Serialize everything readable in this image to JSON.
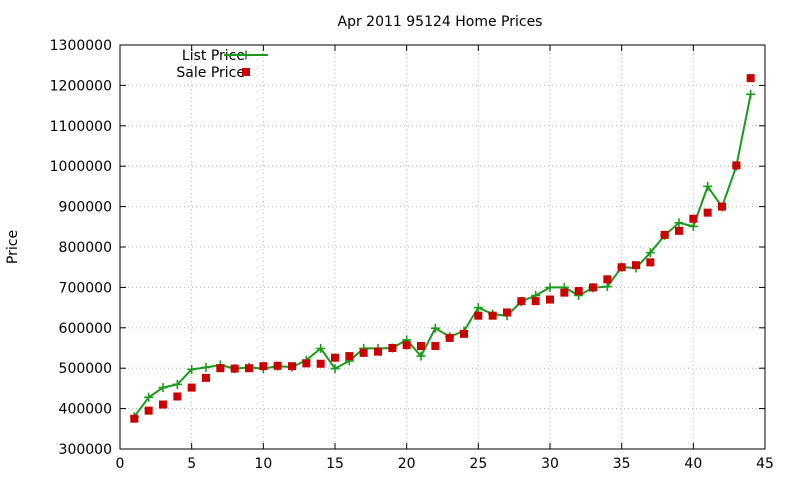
{
  "chart_data": {
    "type": "line",
    "title": "Apr 2011 95124 Home Prices",
    "xlabel": "",
    "ylabel": "Price",
    "xlim": [
      0,
      45
    ],
    "ylim": [
      300000,
      1300000
    ],
    "x_ticks": [
      0,
      5,
      10,
      15,
      20,
      25,
      30,
      35,
      40,
      45
    ],
    "y_ticks": [
      300000,
      400000,
      500000,
      600000,
      700000,
      800000,
      900000,
      1000000,
      1100000,
      1200000,
      1300000
    ],
    "grid": true,
    "legend_position": "top-left",
    "series": [
      {
        "name": "List Price",
        "style": "line-points",
        "marker": "plus",
        "color": "#1a9a1a",
        "x": [
          1,
          2,
          3,
          4,
          5,
          6,
          7,
          8,
          9,
          10,
          11,
          12,
          13,
          14,
          15,
          16,
          17,
          18,
          19,
          20,
          21,
          22,
          23,
          24,
          25,
          26,
          27,
          28,
          29,
          30,
          31,
          32,
          33,
          34,
          35,
          36,
          37,
          38,
          39,
          40,
          41,
          42,
          43,
          44
        ],
        "y": [
          380000,
          428000,
          452000,
          460000,
          497000,
          502000,
          508000,
          499000,
          502000,
          499000,
          505000,
          503000,
          520000,
          549000,
          499000,
          518000,
          549000,
          549000,
          550000,
          570000,
          530000,
          599000,
          578000,
          592000,
          650000,
          634000,
          630000,
          665000,
          680000,
          700000,
          700000,
          680000,
          699000,
          702000,
          750000,
          748000,
          786000,
          829000,
          860000,
          851000,
          950000,
          899000,
          1000000,
          1178000
        ]
      },
      {
        "name": "Sale Price",
        "style": "points",
        "marker": "square",
        "color": "#cc0000",
        "x": [
          1,
          2,
          3,
          4,
          5,
          6,
          7,
          8,
          9,
          10,
          11,
          12,
          13,
          14,
          15,
          16,
          17,
          18,
          19,
          20,
          21,
          22,
          23,
          24,
          25,
          26,
          27,
          28,
          29,
          30,
          31,
          32,
          33,
          34,
          35,
          36,
          37,
          38,
          39,
          40,
          41,
          42,
          43,
          44
        ],
        "y": [
          375000,
          395000,
          410000,
          430000,
          452000,
          476000,
          500000,
          499000,
          500000,
          505000,
          506000,
          505000,
          512000,
          511000,
          526000,
          530000,
          538000,
          541000,
          550000,
          557000,
          555000,
          555000,
          575000,
          585000,
          630000,
          630000,
          638000,
          666000,
          666000,
          670000,
          687000,
          691000,
          700000,
          720000,
          750000,
          755000,
          762000,
          830000,
          840000,
          870000,
          885000,
          900000,
          1002000,
          1218000
        ]
      }
    ]
  }
}
